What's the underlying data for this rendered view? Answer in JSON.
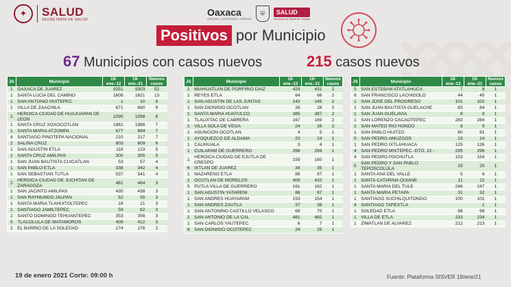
{
  "header": {
    "salud_logo": "SALUD",
    "salud_logo_sub": "SECRETARÍA DE SALUD",
    "oaxaca_logo": "Oaxaca",
    "oaxaca_logo_sub": "CRECER • CONSTRUIR • CRECER",
    "salud_badge": "SALUD",
    "salud_badge_sub": "Servicios de Salud de Oaxaca",
    "title_highlight": "Positivos",
    "title_rest": "por Municipio"
  },
  "summary": {
    "municipios_count": "67",
    "municipios_label": "Municipios con casos nuevos",
    "casos_count": "215",
    "casos_label": "casos nuevos"
  },
  "table_headers": {
    "t1": [
      "JS",
      "Municipio",
      "18-ene.-12",
      "19-ene.-21",
      "Nuevos casos"
    ],
    "t2": [
      "JS",
      "Municipio",
      "18-ene.-12",
      "19-ene.-21",
      "Nuevos casos"
    ],
    "t3": [
      "JS",
      "Municipio",
      "18-ene.-12",
      "19-ene.-21",
      "Nuevos casos"
    ]
  },
  "tables": {
    "t1": [
      [
        "1",
        "OAXACA DE JUAREZ",
        "9251",
        "9303",
        "52"
      ],
      [
        "1",
        "SANTA LUCIA DEL CAMINO",
        "1608",
        "1621",
        "13"
      ],
      [
        "1",
        "SAN ANTONIO HUITEPEC",
        "1",
        "10",
        "9"
      ],
      [
        "1",
        "VILLA DE ZAACHILA",
        "671",
        "680",
        "9"
      ],
      [
        "2",
        "HEROICA CIUDAD DE HUAJUAPAN DE LEON",
        "1090",
        "1098",
        "8"
      ],
      [
        "1",
        "SANTA CRUZ XOXOCOTLAN",
        "1981",
        "1988",
        "7"
      ],
      [
        "1",
        "SANTA MARIA ATZOMPA",
        "677",
        "684",
        "7"
      ],
      [
        "4",
        "SANTIAGO PINOTEPA NACIONAL",
        "210",
        "217",
        "7"
      ],
      [
        "2",
        "SALINA CRUZ",
        "803",
        "809",
        "6"
      ],
      [
        "1",
        "SAN AGUSTIN ETLA",
        "118",
        "123",
        "5"
      ],
      [
        "1",
        "SANTA CRUZ AMILPAS",
        "300",
        "305",
        "5"
      ],
      [
        "1",
        "SAN JUAN BAUTISTA CUICATLAN",
        "53",
        "57",
        "4"
      ],
      [
        "1",
        "SAN PABLO ETLA",
        "338",
        "342",
        "4"
      ],
      [
        "1",
        "SAN SEBASTIAN TUTLA",
        "537",
        "541",
        "4"
      ],
      [
        "2",
        "HEROICA CIUDAD DE JUCHITAN DE ZARAGOZA",
        "461",
        "464",
        "3"
      ],
      [
        "1",
        "SAN JACINTO AMILPAS",
        "435",
        "438",
        "3"
      ],
      [
        "1",
        "SAN RAYMUNDO JALPAN",
        "52",
        "55",
        "3"
      ],
      [
        "1",
        "SANTA MARIA TLAHUITOLTEPEC",
        "18",
        "21",
        "3"
      ],
      [
        "1",
        "SANTIAGO JAMILTEPEC",
        "59",
        "62",
        "3"
      ],
      [
        "2",
        "SANTO DOMINGO TEHUANTEPEC",
        "353",
        "356",
        "3"
      ],
      [
        "5",
        "TLACOLULA DE MATAMOROS",
        "409",
        "412",
        "3"
      ],
      [
        "2",
        "EL BARRIO DE LA SOLEDAD",
        "174",
        "176",
        "2"
      ]
    ],
    "t2": [
      [
        "1",
        "MIAHUATLAN DE PORFIRIO DIAZ",
        "429",
        "431",
        "2"
      ],
      [
        "1",
        "REYES ETLA",
        "64",
        "66",
        "2"
      ],
      [
        "1",
        "SAN AGUSTIN DE LAS JUNTAS",
        "143",
        "145",
        "2"
      ],
      [
        "1",
        "SAN DIONISIO OCOTLAN",
        "26",
        "28",
        "2"
      ],
      [
        "1",
        "SANTA MARIA HUATULCO",
        "385",
        "387",
        "2"
      ],
      [
        "1",
        "TLALIXTAC DE CABRERA",
        "167",
        "169",
        "2"
      ],
      [
        "1",
        "VILLA SOLA DE VEGA",
        "24",
        "26",
        "2"
      ],
      [
        "1",
        "ASUNCION OCOTLAN",
        "4",
        "5",
        "1"
      ],
      [
        "1",
        "AYOQUEZCO DE ALDAMA",
        "23",
        "24",
        "1"
      ],
      [
        "1",
        "CALIHUALA",
        "3",
        "4",
        "1"
      ],
      [
        "1",
        "CUILAPAM DE GUERRERO",
        "268",
        "269",
        "1"
      ],
      [
        "1",
        "HEROICA CIUDAD DE EJUTLA DE CRESPO",
        "159",
        "160",
        "1"
      ],
      [
        "6",
        "IXTLAN DE JUAREZ",
        "34",
        "35",
        "1"
      ],
      [
        "1",
        "NAZARENO ETLA",
        "86",
        "87",
        "1"
      ],
      [
        "1",
        "OCOTLAN DE MORELOS",
        "409",
        "410",
        "1"
      ],
      [
        "5",
        "PUTLA VILLA DE GUERRERO",
        "161",
        "162",
        "1"
      ],
      [
        "1",
        "SAN AGUSTIN YATARENI",
        "86",
        "87",
        "1"
      ],
      [
        "1",
        "SAN ANDRES HUAYAPAM",
        "153",
        "154",
        "1"
      ],
      [
        "1",
        "SAN ANDRES ZAUTLA",
        "37",
        "38",
        "1"
      ],
      [
        "1",
        "SAN ANTONINO CASTILLO VELASCO",
        "69",
        "70",
        "1"
      ],
      [
        "1",
        "SAN ANTONIO DE LA CAL",
        "481",
        "482",
        "1"
      ],
      [
        "1",
        "SAN CARLOS YAUTEPEC",
        "6",
        "7",
        "1"
      ],
      [
        "6",
        "SAN DIONISIO OCOTEPEC",
        "24",
        "25",
        "1"
      ]
    ],
    "t3": [
      [
        "5",
        "SAN ESTEBAN ATATLAHUCA",
        "7",
        "8",
        "1"
      ],
      [
        "6",
        "SAN FRANCISCO LACHIGOLO",
        "44",
        "45",
        "1"
      ],
      [
        "1",
        "SAN JOSE DEL PROGRESO",
        "101",
        "102",
        "1"
      ],
      [
        "1",
        "SAN JUAN BAUTISTA GUELACHE",
        "83",
        "84",
        "1"
      ],
      [
        "1",
        "SAN JUAN GUELAVIA",
        "8",
        "9",
        "1"
      ],
      [
        "1",
        "SAN LORENZO CACAOTEPEC",
        "283",
        "284",
        "1"
      ],
      [
        "1",
        "SAN MATEO RIO HONDO",
        "8",
        "9",
        "1"
      ],
      [
        "1",
        "SAN PABLO HUITZO",
        "80",
        "81",
        "1"
      ],
      [
        "5",
        "SAN PEDRO AMUZGOS",
        "13",
        "14",
        "1"
      ],
      [
        "1",
        "SAN PEDRO IXTLAHUACA",
        "125",
        "126",
        "1"
      ],
      [
        "4",
        "SAN PEDRO MIXTEPEC -DTO. 22 -",
        "295",
        "296",
        "1"
      ],
      [
        "4",
        "SAN PEDRO POCHUTLA",
        "153",
        "154",
        "1"
      ],
      [
        "5",
        "SAN PEDRO Y SAN PABLO TEPOSCOLULA",
        "19",
        "20",
        "1"
      ],
      [
        "1",
        "SANTA ANA DEL VALLE",
        "5",
        "6",
        "1"
      ],
      [
        "1",
        "SANTA CATARINA QUIANE",
        "11",
        "12",
        "1"
      ],
      [
        "1",
        "SANTA MARIA DEL TULE",
        "246",
        "247",
        "1"
      ],
      [
        "1",
        "SANTA MARIA PETAPA",
        "31",
        "32",
        "1"
      ],
      [
        "1",
        "SANTIAGO SUCHILQUITONGO",
        "100",
        "101",
        "1"
      ],
      [
        "4",
        "SANTIAGO TAPEXTLA",
        "",
        "1",
        "1"
      ],
      [
        "1",
        "SOLEDAD ETLA",
        "98",
        "99",
        "1"
      ],
      [
        "1",
        "VILLA DE ETLA",
        "233",
        "234",
        "1"
      ],
      [
        "1",
        "ZIMATLAN DE ALVAREZ",
        "212",
        "213",
        "1"
      ]
    ]
  },
  "footer": {
    "date": "19 de enero 2021 Corte: 09:00 h",
    "source": "Fuente: Plataforma SISVER 19/ene/21"
  },
  "icons": {
    "seal": "eagle-seal-icon",
    "virus": "virus-icon",
    "shield": "oaxaca-shield-icon"
  }
}
